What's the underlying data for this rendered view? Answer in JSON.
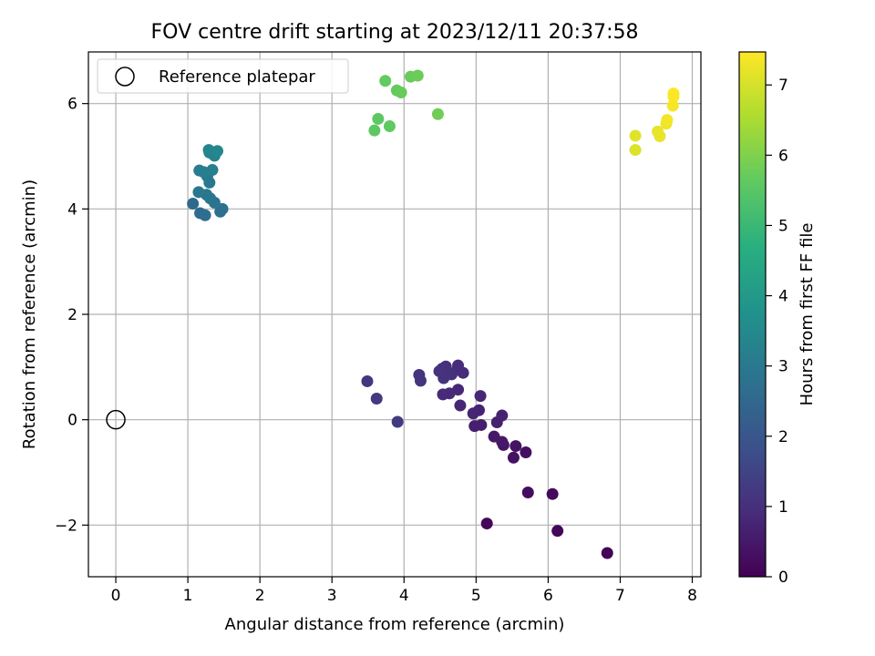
{
  "chart_data": {
    "type": "scatter",
    "title": "FOV centre drift starting at 2023/12/11 20:37:58",
    "xlabel": "Angular distance from reference (arcmin)",
    "ylabel": "Rotation from reference (arcmin)",
    "xlim": [
      -0.38,
      8.12
    ],
    "ylim": [
      -2.98,
      6.98
    ],
    "xticks": [
      0,
      1,
      2,
      3,
      4,
      5,
      6,
      7,
      8
    ],
    "yticks": [
      -2,
      0,
      2,
      4,
      6
    ],
    "ytick_labels": [
      "−2",
      "0",
      "2",
      "4",
      "6"
    ],
    "grid": true,
    "legend": {
      "placement": "top-left",
      "entries": [
        "Reference platepar"
      ]
    },
    "reference_point": {
      "x": 0,
      "y": 0
    },
    "colorbar": {
      "label": "Hours from first FF file",
      "range": [
        0,
        7.47
      ],
      "ticks": [
        0,
        1,
        2,
        3,
        4,
        5,
        6,
        7
      ],
      "colormap": "viridis"
    },
    "points": [
      {
        "x": 6.82,
        "y": -2.53,
        "h": 0.05
      },
      {
        "x": 6.13,
        "y": -2.11,
        "h": 0.1
      },
      {
        "x": 5.15,
        "y": -1.97,
        "h": 0.15
      },
      {
        "x": 6.06,
        "y": -1.41,
        "h": 0.2
      },
      {
        "x": 5.72,
        "y": -1.38,
        "h": 0.25
      },
      {
        "x": 5.69,
        "y": -0.62,
        "h": 0.3
      },
      {
        "x": 5.52,
        "y": -0.72,
        "h": 0.35
      },
      {
        "x": 5.55,
        "y": -0.5,
        "h": 0.4
      },
      {
        "x": 5.38,
        "y": -0.48,
        "h": 0.45
      },
      {
        "x": 5.36,
        "y": -0.42,
        "h": 0.5
      },
      {
        "x": 5.25,
        "y": -0.32,
        "h": 0.55
      },
      {
        "x": 5.07,
        "y": -0.1,
        "h": 0.6
      },
      {
        "x": 4.98,
        "y": -0.12,
        "h": 0.65
      },
      {
        "x": 5.29,
        "y": -0.05,
        "h": 0.7
      },
      {
        "x": 5.36,
        "y": 0.08,
        "h": 0.72
      },
      {
        "x": 5.04,
        "y": 0.18,
        "h": 0.75
      },
      {
        "x": 4.96,
        "y": 0.12,
        "h": 0.78
      },
      {
        "x": 4.78,
        "y": 0.27,
        "h": 0.8
      },
      {
        "x": 5.06,
        "y": 0.45,
        "h": 0.83
      },
      {
        "x": 4.75,
        "y": 0.57,
        "h": 0.85
      },
      {
        "x": 4.63,
        "y": 0.5,
        "h": 0.88
      },
      {
        "x": 4.54,
        "y": 0.48,
        "h": 0.9
      },
      {
        "x": 4.82,
        "y": 0.89,
        "h": 0.93
      },
      {
        "x": 4.74,
        "y": 0.95,
        "h": 0.95
      },
      {
        "x": 4.75,
        "y": 1.03,
        "h": 0.97
      },
      {
        "x": 4.66,
        "y": 0.86,
        "h": 1.0
      },
      {
        "x": 4.58,
        "y": 1.01,
        "h": 1.02
      },
      {
        "x": 4.6,
        "y": 0.92,
        "h": 1.05
      },
      {
        "x": 4.53,
        "y": 0.97,
        "h": 1.07
      },
      {
        "x": 4.49,
        "y": 0.92,
        "h": 1.1
      },
      {
        "x": 4.55,
        "y": 0.79,
        "h": 1.12
      },
      {
        "x": 4.23,
        "y": 0.74,
        "h": 1.15
      },
      {
        "x": 4.21,
        "y": 0.85,
        "h": 1.17
      },
      {
        "x": 3.49,
        "y": 0.73,
        "h": 1.2
      },
      {
        "x": 3.62,
        "y": 0.4,
        "h": 1.25
      },
      {
        "x": 3.91,
        "y": -0.04,
        "h": 1.3
      },
      {
        "x": 1.07,
        "y": 4.1,
        "h": 2.6
      },
      {
        "x": 1.17,
        "y": 3.92,
        "h": 2.65
      },
      {
        "x": 1.24,
        "y": 3.88,
        "h": 2.7
      },
      {
        "x": 1.45,
        "y": 3.95,
        "h": 2.75
      },
      {
        "x": 1.48,
        "y": 4.0,
        "h": 2.8
      },
      {
        "x": 1.37,
        "y": 4.12,
        "h": 2.85
      },
      {
        "x": 1.31,
        "y": 4.2,
        "h": 2.9
      },
      {
        "x": 1.26,
        "y": 4.27,
        "h": 2.95
      },
      {
        "x": 1.15,
        "y": 4.32,
        "h": 3.0
      },
      {
        "x": 1.3,
        "y": 4.5,
        "h": 3.05
      },
      {
        "x": 1.27,
        "y": 4.62,
        "h": 3.1
      },
      {
        "x": 1.16,
        "y": 4.73,
        "h": 3.15
      },
      {
        "x": 1.22,
        "y": 4.7,
        "h": 3.2
      },
      {
        "x": 1.34,
        "y": 4.74,
        "h": 3.25
      },
      {
        "x": 1.37,
        "y": 5.01,
        "h": 3.3
      },
      {
        "x": 1.3,
        "y": 5.07,
        "h": 3.35
      },
      {
        "x": 1.29,
        "y": 5.12,
        "h": 3.4
      },
      {
        "x": 1.41,
        "y": 5.1,
        "h": 3.45
      },
      {
        "x": 3.59,
        "y": 5.49,
        "h": 5.6
      },
      {
        "x": 3.64,
        "y": 5.71,
        "h": 5.62
      },
      {
        "x": 3.8,
        "y": 5.57,
        "h": 5.65
      },
      {
        "x": 3.74,
        "y": 6.43,
        "h": 5.68
      },
      {
        "x": 3.9,
        "y": 6.25,
        "h": 5.7
      },
      {
        "x": 3.96,
        "y": 6.21,
        "h": 5.73
      },
      {
        "x": 4.09,
        "y": 6.51,
        "h": 5.76
      },
      {
        "x": 4.19,
        "y": 6.53,
        "h": 5.8
      },
      {
        "x": 4.47,
        "y": 5.8,
        "h": 5.85
      },
      {
        "x": 7.21,
        "y": 5.12,
        "h": 7.1
      },
      {
        "x": 7.21,
        "y": 5.39,
        "h": 7.15
      },
      {
        "x": 7.52,
        "y": 5.47,
        "h": 7.2
      },
      {
        "x": 7.55,
        "y": 5.38,
        "h": 7.25
      },
      {
        "x": 7.64,
        "y": 5.62,
        "h": 7.3
      },
      {
        "x": 7.65,
        "y": 5.69,
        "h": 7.35
      },
      {
        "x": 7.73,
        "y": 5.96,
        "h": 7.4
      },
      {
        "x": 7.74,
        "y": 6.13,
        "h": 7.43
      },
      {
        "x": 7.74,
        "y": 6.19,
        "h": 7.45
      }
    ]
  }
}
